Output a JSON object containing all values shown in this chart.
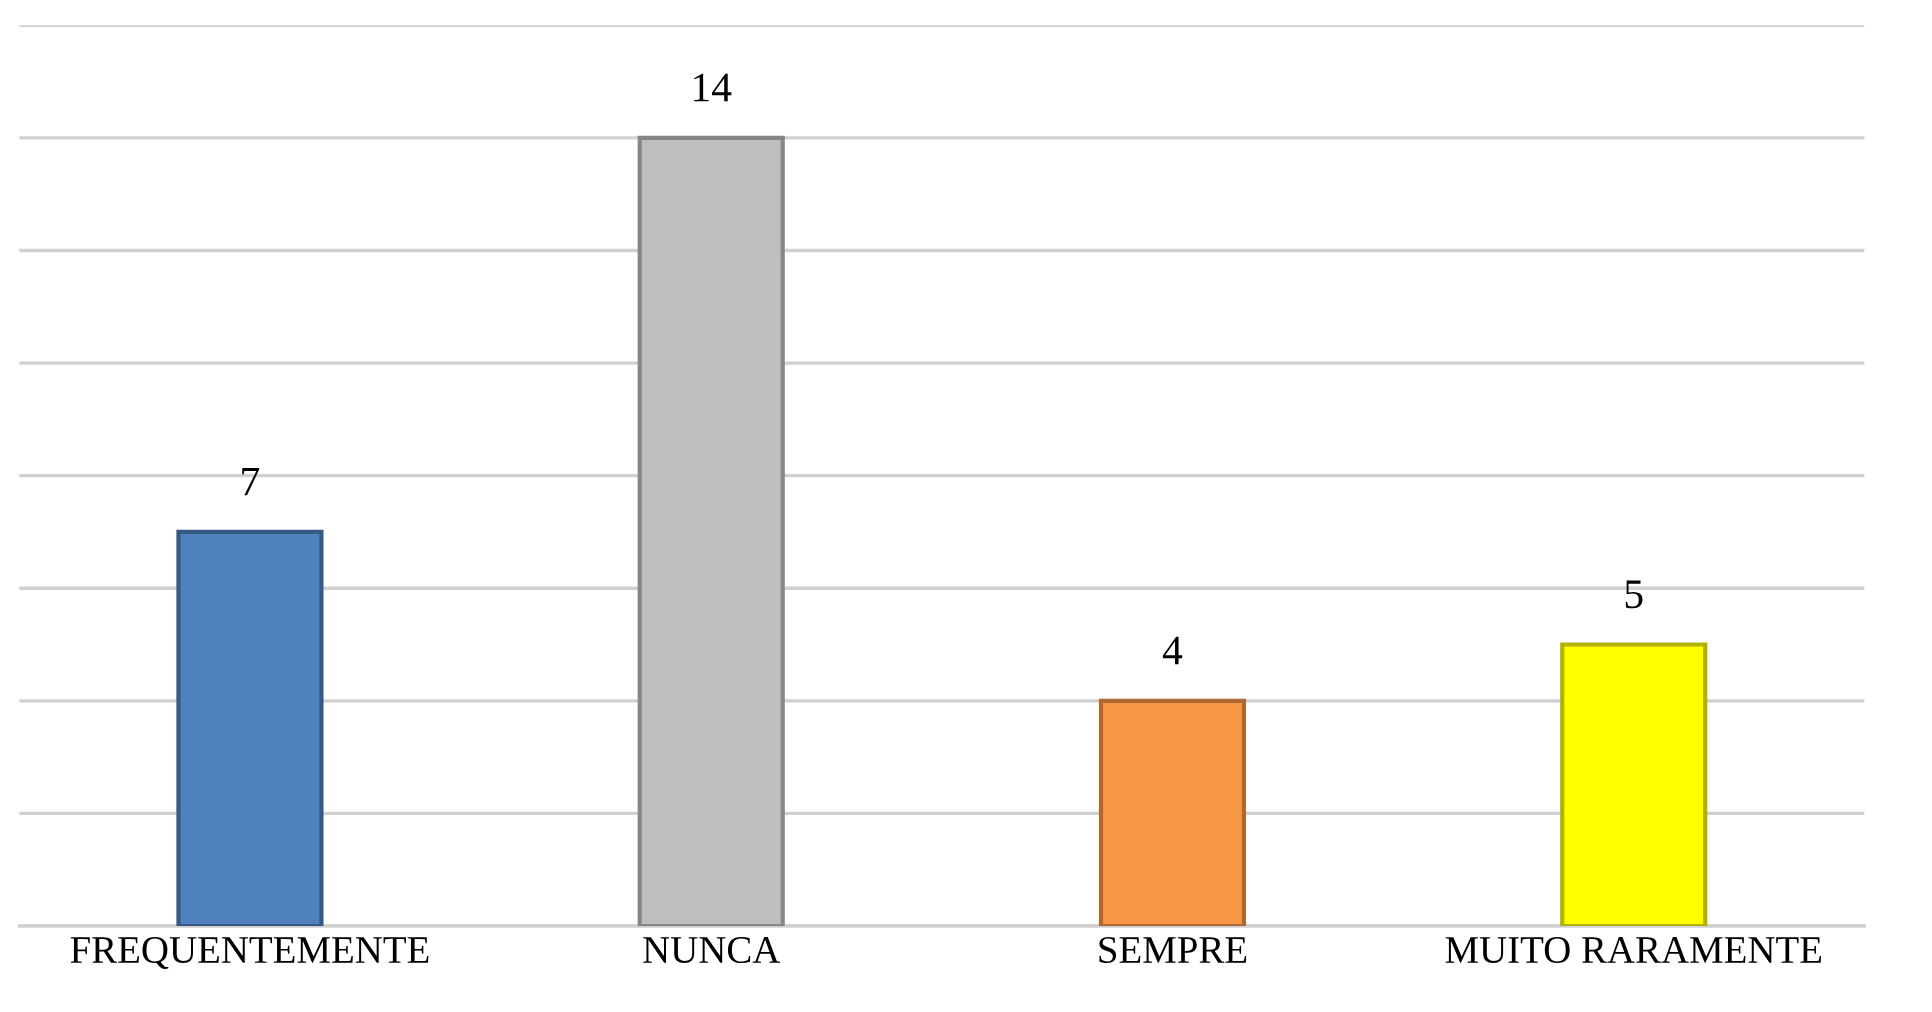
{
  "chart_data": {
    "type": "bar",
    "categories": [
      "FREQUENTEMENTE",
      "NUNCA",
      "SEMPRE",
      "MUITO RARAMENTE"
    ],
    "values": [
      7,
      14,
      4,
      5
    ],
    "colors": [
      "#4f81bd",
      "#bfbfbf",
      "#f79646",
      "#ffff00"
    ],
    "ylim": [
      0,
      16
    ],
    "yticks": [
      {
        "value": 0,
        "label": null
      },
      {
        "value": 2,
        "label": null
      },
      {
        "value": 4,
        "label": null
      },
      {
        "value": 6,
        "label": null
      },
      {
        "value": 8,
        "label": null
      },
      {
        "value": 10,
        "label": null
      },
      {
        "value": 12,
        "label": null
      },
      {
        "value": 14,
        "label": null
      },
      {
        "value": 16,
        "label": null
      }
    ],
    "tick_labels": "x",
    "grid": "y",
    "data_labels": true
  }
}
